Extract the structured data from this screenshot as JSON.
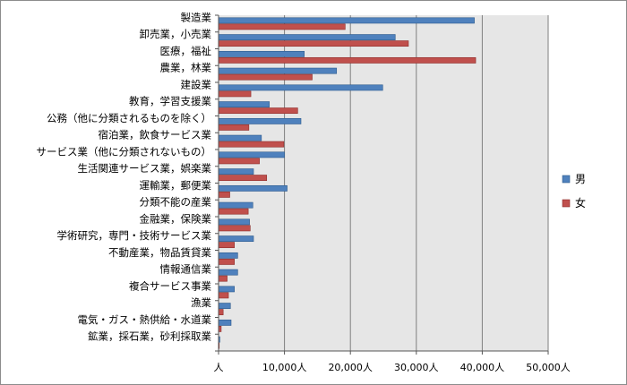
{
  "chart_data": {
    "type": "bar",
    "orientation": "horizontal",
    "categories": [
      "製造業",
      "卸売業，小売業",
      "医療，福祉",
      "農業，林業",
      "建設業",
      "教育，学習支援業",
      "公務（他に分類されるものを除く）",
      "宿泊業，飲食サービス業",
      "サービス業（他に分類されないもの）",
      "生活関連サービス業，娯楽業",
      "運輸業，郵便業",
      "分類不能の産業",
      "金融業，保険業",
      "学術研究，専門・技術サービス業",
      "不動産業，物品賃貸業",
      "情報通信業",
      "複合サービス事業",
      "漁業",
      "電気・ガス・熱供給・水道業",
      "鉱業，採石業，砂利採取業"
    ],
    "series": [
      {
        "name": "男",
        "color": "#4f81bd",
        "stroke": "#2c5a8c",
        "values": [
          38800,
          26800,
          13000,
          17900,
          24900,
          7700,
          12500,
          6500,
          10000,
          5300,
          10400,
          5200,
          4700,
          5300,
          2900,
          2900,
          2400,
          1800,
          1900,
          200
        ]
      },
      {
        "name": "女",
        "color": "#c0504d",
        "stroke": "#8c2b28",
        "values": [
          19200,
          28800,
          39000,
          14200,
          4900,
          12000,
          4600,
          9900,
          6200,
          7300,
          1700,
          4500,
          4800,
          2400,
          2400,
          1300,
          1500,
          700,
          400,
          100
        ]
      }
    ],
    "xticks": [
      "人",
      "10,000人",
      "20,000人",
      "30,000人",
      "40,000人",
      "50,000人"
    ],
    "xlim": [
      0,
      50000
    ],
    "grid": true,
    "legend": "right"
  }
}
